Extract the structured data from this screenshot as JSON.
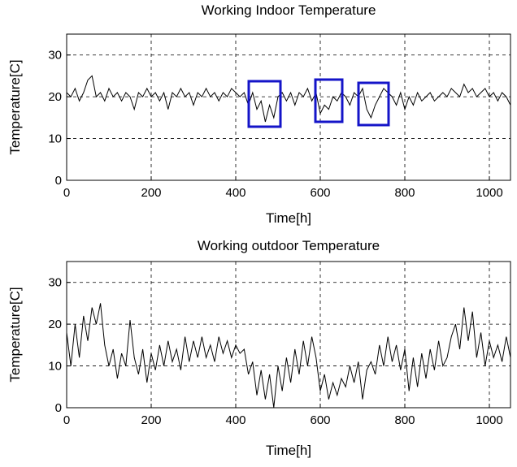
{
  "chart_data": [
    {
      "type": "line",
      "title": "Working Indoor Temperature",
      "x_label": "Time[h]",
      "y_label": "Temperature[C]",
      "x": [
        0,
        10,
        20,
        30,
        40,
        50,
        60,
        70,
        80,
        90,
        100,
        110,
        120,
        130,
        140,
        150,
        160,
        170,
        180,
        190,
        200,
        210,
        220,
        230,
        240,
        250,
        260,
        270,
        280,
        290,
        300,
        310,
        320,
        330,
        340,
        350,
        360,
        370,
        380,
        390,
        400,
        410,
        420,
        430,
        440,
        450,
        460,
        470,
        480,
        490,
        500,
        510,
        520,
        530,
        540,
        550,
        560,
        570,
        580,
        590,
        600,
        610,
        620,
        630,
        640,
        650,
        660,
        670,
        680,
        690,
        700,
        710,
        720,
        730,
        740,
        750,
        760,
        770,
        780,
        790,
        800,
        810,
        820,
        830,
        840,
        850,
        860,
        870,
        880,
        890,
        900,
        910,
        920,
        930,
        940,
        950,
        960,
        970,
        980,
        990,
        1000,
        1010,
        1020,
        1030,
        1040,
        1050
      ],
      "series": [
        {
          "color": "#000000",
          "values": [
            21,
            20,
            22,
            19,
            21,
            24,
            25,
            20,
            21,
            19,
            22,
            20,
            21,
            19,
            21,
            20,
            17,
            21,
            20,
            22,
            20,
            21,
            19,
            21,
            17,
            21,
            20,
            22,
            20,
            21,
            18,
            21,
            20,
            22,
            20,
            21,
            19,
            21,
            20,
            22,
            21,
            20,
            21,
            18,
            21,
            17,
            19,
            14,
            18,
            15,
            20,
            21,
            19,
            21,
            18,
            21,
            20,
            22,
            19,
            21,
            16,
            18,
            17,
            20,
            19,
            21,
            20,
            18,
            21,
            20,
            22,
            17,
            15,
            18,
            20,
            22,
            21,
            20,
            18,
            21,
            17,
            20,
            18,
            21,
            19,
            20,
            21,
            19,
            20,
            21,
            20,
            22,
            21,
            20,
            23,
            21,
            22,
            20,
            21,
            22,
            20,
            21,
            19,
            21,
            20,
            18
          ]
        }
      ],
      "xlim": [
        0,
        1050
      ],
      "ylim": [
        0,
        35
      ],
      "xticks": [
        0,
        200,
        400,
        600,
        800,
        1000
      ],
      "yticks": [
        0,
        10,
        20,
        30
      ],
      "grid": true
    },
    {
      "type": "line",
      "title": "Working outdoor Temperature",
      "x_label": "Time[h]",
      "y_label": "Temperature[C]",
      "x": [
        0,
        10,
        20,
        30,
        40,
        50,
        60,
        70,
        80,
        90,
        100,
        110,
        120,
        130,
        140,
        150,
        160,
        170,
        180,
        190,
        200,
        210,
        220,
        230,
        240,
        250,
        260,
        270,
        280,
        290,
        300,
        310,
        320,
        330,
        340,
        350,
        360,
        370,
        380,
        390,
        400,
        410,
        420,
        430,
        440,
        450,
        460,
        470,
        480,
        490,
        500,
        510,
        520,
        530,
        540,
        550,
        560,
        570,
        580,
        590,
        600,
        610,
        620,
        630,
        640,
        650,
        660,
        670,
        680,
        690,
        700,
        710,
        720,
        730,
        740,
        750,
        760,
        770,
        780,
        790,
        800,
        810,
        820,
        830,
        840,
        850,
        860,
        870,
        880,
        890,
        900,
        910,
        920,
        930,
        940,
        950,
        960,
        970,
        980,
        990,
        1000,
        1010,
        1020,
        1030,
        1040,
        1050
      ],
      "series": [
        {
          "color": "#000000",
          "values": [
            18,
            10,
            20,
            12,
            22,
            16,
            24,
            20,
            25,
            15,
            10,
            14,
            7,
            13,
            10,
            21,
            12,
            8,
            14,
            6,
            13,
            9,
            15,
            10,
            16,
            11,
            14,
            9,
            17,
            11,
            16,
            12,
            17,
            12,
            15,
            11,
            17,
            13,
            16,
            12,
            15,
            13,
            14,
            8,
            11,
            3,
            9,
            2,
            8,
            0,
            10,
            4,
            12,
            6,
            14,
            8,
            16,
            10,
            17,
            12,
            4,
            8,
            2,
            6,
            3,
            7,
            5,
            10,
            6,
            11,
            2,
            9,
            11,
            8,
            15,
            10,
            17,
            11,
            15,
            9,
            14,
            4,
            12,
            5,
            13,
            7,
            14,
            9,
            16,
            10,
            12,
            17,
            20,
            14,
            24,
            16,
            23,
            12,
            18,
            10,
            16,
            12,
            15,
            11,
            17,
            12
          ]
        }
      ],
      "xlim": [
        0,
        1050
      ],
      "ylim": [
        0,
        35
      ],
      "xticks": [
        0,
        200,
        400,
        600,
        800,
        1000
      ],
      "yticks": [
        0,
        10,
        20,
        30
      ],
      "grid": true
    }
  ]
}
